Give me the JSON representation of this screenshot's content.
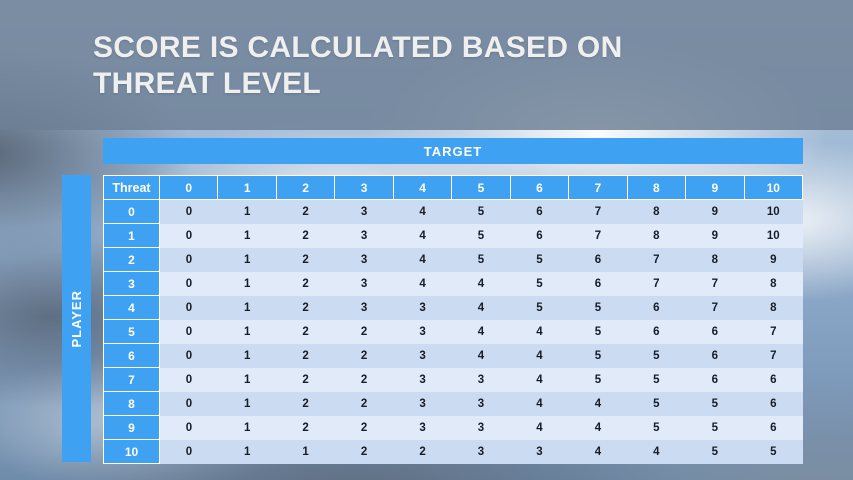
{
  "slide": {
    "title": {
      "line1": "SCORE IS CALCULATED BASED ON",
      "line2": "THREAT LEVEL"
    }
  },
  "matrix": {
    "target_label": "TARGET",
    "player_label": "PLAYER",
    "corner_label": "Threat",
    "column_headers": [
      "0",
      "1",
      "2",
      "3",
      "4",
      "5",
      "6",
      "7",
      "8",
      "9",
      "10"
    ],
    "rows": [
      {
        "label": "0",
        "values": [
          0,
          1,
          2,
          3,
          4,
          5,
          6,
          7,
          8,
          9,
          10
        ]
      },
      {
        "label": "1",
        "values": [
          0,
          1,
          2,
          3,
          4,
          5,
          6,
          7,
          8,
          9,
          10
        ]
      },
      {
        "label": "2",
        "values": [
          0,
          1,
          2,
          3,
          4,
          5,
          5,
          6,
          7,
          8,
          9
        ]
      },
      {
        "label": "3",
        "values": [
          0,
          1,
          2,
          3,
          4,
          4,
          5,
          6,
          7,
          7,
          8
        ]
      },
      {
        "label": "4",
        "values": [
          0,
          1,
          2,
          3,
          3,
          4,
          5,
          5,
          6,
          7,
          8
        ]
      },
      {
        "label": "5",
        "values": [
          0,
          1,
          2,
          2,
          3,
          4,
          4,
          5,
          6,
          6,
          7
        ]
      },
      {
        "label": "6",
        "values": [
          0,
          1,
          2,
          2,
          3,
          4,
          4,
          5,
          5,
          6,
          7
        ]
      },
      {
        "label": "7",
        "values": [
          0,
          1,
          2,
          2,
          3,
          3,
          4,
          5,
          5,
          6,
          6
        ]
      },
      {
        "label": "8",
        "values": [
          0,
          1,
          2,
          2,
          3,
          3,
          4,
          4,
          5,
          5,
          6
        ]
      },
      {
        "label": "9",
        "values": [
          0,
          1,
          2,
          2,
          3,
          3,
          4,
          4,
          5,
          5,
          6
        ]
      },
      {
        "label": "10",
        "values": [
          0,
          1,
          1,
          2,
          2,
          3,
          3,
          4,
          4,
          5,
          5
        ]
      }
    ]
  },
  "colors": {
    "accent_blue": "#3FA1F1",
    "row_band_dark": "#CBDCF2",
    "row_band_light": "#E0EAF8",
    "title_band": "rgba(109,127,149,0.82)"
  }
}
